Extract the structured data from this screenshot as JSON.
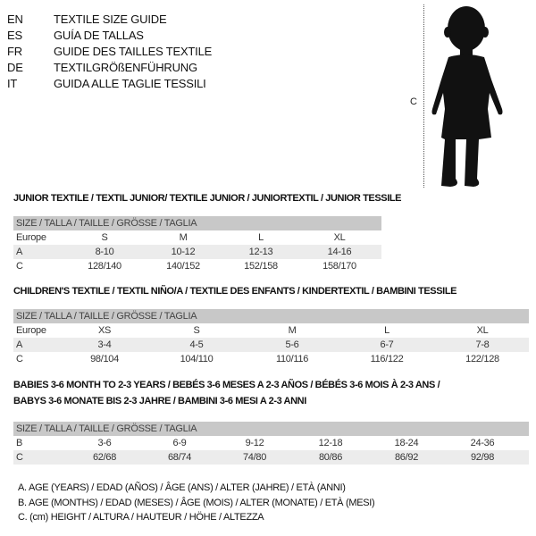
{
  "languages": [
    {
      "code": "EN",
      "text": "TEXTILE SIZE GUIDE"
    },
    {
      "code": "ES",
      "text": "GUÍA DE TALLAS"
    },
    {
      "code": "FR",
      "text": "GUIDE DES TAILLES TEXTILE"
    },
    {
      "code": "DE",
      "text": "TEXTILGRÖßENFÜHRUNG"
    },
    {
      "code": "IT",
      "text": "GUIDA ALLE TAGLIE TESSILI"
    }
  ],
  "figure": {
    "measure_label": "C",
    "icon": "child-silhouette"
  },
  "junior": {
    "title": "JUNIOR TEXTILE / TEXTIL JUNIOR/ TEXTILE JUNIOR / JUNIORTEXTIL / JUNIOR TESSILE",
    "header": "SIZE / TALLA / TAILLE / GRÖSSE / TAGLIA",
    "rows": [
      {
        "label": "Europe",
        "cells": [
          "S",
          "M",
          "L",
          "XL"
        ]
      },
      {
        "label": "A",
        "cells": [
          "8-10",
          "10-12",
          "12-13",
          "14-16"
        ]
      },
      {
        "label": "C",
        "cells": [
          "128/140",
          "140/152",
          "152/158",
          "158/170"
        ]
      }
    ]
  },
  "children": {
    "title": "CHILDREN'S TEXTILE / TEXTIL NIÑO/A / TEXTILE DES ENFANTS / KINDERTEXTIL / BAMBINI TESSILE",
    "header": "SIZE / TALLA / TAILLE / GRÖSSE / TAGLIA",
    "rows": [
      {
        "label": "Europe",
        "cells": [
          "XS",
          "S",
          "M",
          "L",
          "XL"
        ]
      },
      {
        "label": "A",
        "cells": [
          "3-4",
          "4-5",
          "5-6",
          "6-7",
          "7-8"
        ]
      },
      {
        "label": "C",
        "cells": [
          "98/104",
          "104/110",
          "110/116",
          "116/122",
          "122/128"
        ]
      }
    ]
  },
  "babies": {
    "title_line1": "BABIES 3-6 MONTH TO 2-3 YEARS / BEBÉS 3-6 MESES A 2-3 AÑOS / BÉBÉS 3-6 MOIS À 2-3 ANS /",
    "title_line2": "BABYS 3-6 MONATE BIS 2-3 JAHRE / BAMBINI 3-6 MESI A 2-3 ANNI",
    "header": "SIZE / TALLA / TAILLE / GRÖSSE / TAGLIA",
    "rows": [
      {
        "label": "B",
        "cells": [
          "3-6",
          "6-9",
          "9-12",
          "12-18",
          "18-24",
          "24-36"
        ]
      },
      {
        "label": "C",
        "cells": [
          "62/68",
          "68/74",
          "74/80",
          "80/86",
          "86/92",
          "92/98"
        ]
      }
    ]
  },
  "legend": [
    "A. AGE (YEARS) / EDAD (AÑOS) / ÂGE (ANS) / ALTER (JAHRE) / ETÀ (ANNI)",
    "B. AGE (MONTHS) / EDAD (MESES) / ÂGE (MOIS) / ALTER (MONATE) / ETÀ (MESI)",
    "C. (cm) HEIGHT / ALTURA / HAUTEUR / HÖHE / ALTEZZA"
  ]
}
